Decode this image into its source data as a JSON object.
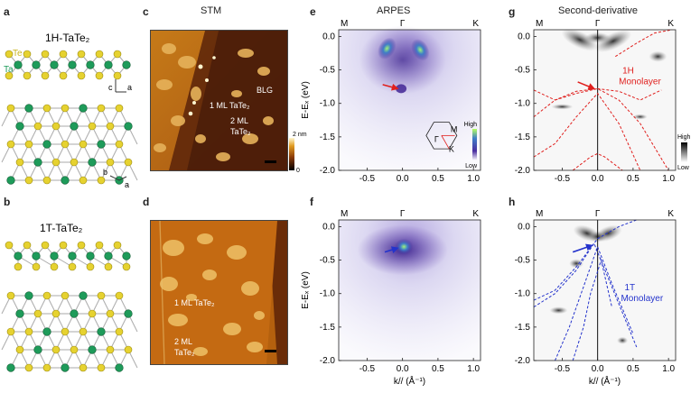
{
  "panel_letters": {
    "a": "a",
    "b": "b",
    "c": "c",
    "d": "d",
    "e": "e",
    "f": "f",
    "g": "g",
    "h": "h"
  },
  "structures": {
    "h_title": "1H-TaTe₂",
    "t_title": "1T-TaTe₂",
    "te_label": "Te",
    "ta_label": "Ta",
    "axis_c": "c",
    "axis_a": "a",
    "axis_b": "b",
    "colors": {
      "te": "#e6d230",
      "ta": "#1e9b5a"
    }
  },
  "stm": {
    "title": "STM",
    "c_labels": {
      "blg": "BLG",
      "ml1": "1 ML TaTe₂",
      "ml2a": "2 ML",
      "ml2b": "TaTe₂"
    },
    "d_labels": {
      "ml1": "1 ML TaTe₂",
      "ml2a": "2 ML",
      "ml2b": "TaTe₂"
    },
    "colorbar": {
      "max": "2 nm",
      "min": "0"
    }
  },
  "arpes": {
    "title": "ARPES",
    "ylabel": "E-Eₓ (eV)",
    "xlabel": "k// (Å⁻¹)",
    "hs_points": [
      "M",
      "Γ",
      "K"
    ],
    "yticks": [
      "0.0",
      "-0.5",
      "-1.0",
      "-1.5",
      "-2.0"
    ],
    "xticks": [
      "-0.5",
      "0.0",
      "0.5",
      "1.0"
    ],
    "legend": {
      "high": "High",
      "low": "Low"
    },
    "bz_labels": {
      "m": "M",
      "gamma": "Γ",
      "k": "K"
    }
  },
  "second_derivative": {
    "title": "Second-derivative",
    "legend": {
      "high": "High",
      "low": "Low"
    },
    "g_label": [
      "1H",
      "Monolayer"
    ],
    "h_label": [
      "1T",
      "Monolayer"
    ],
    "g_color": "#e0201e",
    "h_color": "#2433cc"
  },
  "chart_data": [
    {
      "type": "heatmap",
      "panel": "e",
      "title": "ARPES",
      "xlabel": "k// (Å⁻¹)",
      "ylabel": "E-E_F (eV)",
      "xlim": [
        -0.9,
        1.1
      ],
      "ylim": [
        -2.0,
        0.1
      ],
      "annotation": "red arrow at (k=-0.05, E=-0.78)"
    },
    {
      "type": "heatmap",
      "panel": "f",
      "xlabel": "k// (Å⁻¹)",
      "ylabel": "E-E_F (eV)",
      "xlim": [
        -0.9,
        1.1
      ],
      "ylim": [
        -2.0,
        0.1
      ],
      "annotation": "blue arrow at (k=-0.05, E=-0.32)"
    },
    {
      "type": "line",
      "panel": "g",
      "title": "Second-derivative",
      "xlim": [
        -0.9,
        1.1
      ],
      "ylim": [
        -2.0,
        0.1
      ],
      "series": [
        {
          "x": [
            -0.9,
            -0.6,
            -0.3,
            0.0,
            0.3,
            0.6,
            0.9
          ],
          "y": [
            -0.8,
            -0.95,
            -0.82,
            -0.78,
            -0.82,
            -0.95,
            -0.8
          ]
        },
        {
          "x": [
            -0.9,
            -0.6,
            -0.3,
            0.0,
            0.3,
            0.6,
            1.0
          ],
          "y": [
            -1.2,
            -0.95,
            -0.85,
            -0.78,
            -0.95,
            -1.3,
            -2.0
          ]
        },
        {
          "x": [
            -0.9,
            -0.6,
            -0.3,
            0.0,
            0.3,
            0.6
          ],
          "y": [
            -1.8,
            -1.6,
            -1.2,
            -0.85,
            -1.3,
            -2.0
          ]
        },
        {
          "x": [
            -0.35,
            -0.1,
            0.0,
            0.1,
            0.35
          ],
          "y": [
            -2.0,
            -1.8,
            -1.75,
            -1.8,
            -2.0
          ]
        },
        {
          "x": [
            0.25,
            0.55,
            0.8,
            1.05
          ],
          "y": [
            -0.3,
            -0.1,
            0.05,
            0.1
          ]
        }
      ]
    },
    {
      "type": "line",
      "panel": "h",
      "xlim": [
        -0.9,
        1.1
      ],
      "ylim": [
        -2.0,
        0.1
      ],
      "series": [
        {
          "x": [
            -0.9,
            -0.6,
            -0.3,
            0.0,
            0.3,
            0.55
          ],
          "y": [
            -1.1,
            -0.95,
            -0.6,
            -0.18,
            0.0,
            0.1
          ]
        },
        {
          "x": [
            -0.9,
            -0.6,
            -0.3,
            -0.05,
            0.2,
            0.55
          ],
          "y": [
            -1.2,
            -1.0,
            -0.65,
            -0.25,
            -0.9,
            -1.8
          ]
        },
        {
          "x": [
            -0.6,
            -0.4,
            -0.2,
            0.0,
            0.2,
            0.5
          ],
          "y": [
            -2.0,
            -1.5,
            -0.9,
            -0.3,
            -0.85,
            -1.6
          ]
        },
        {
          "x": [
            -0.35,
            -0.2,
            -0.1,
            0.05,
            0.2
          ],
          "y": [
            -2.0,
            -1.5,
            -1.0,
            -0.5,
            -1.2
          ]
        }
      ]
    }
  ]
}
